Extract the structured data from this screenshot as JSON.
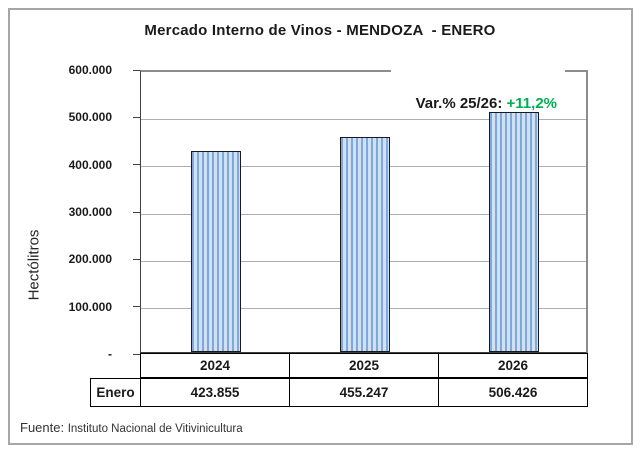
{
  "title": "Mercado Interno de Vinos - MENDOZA  - ENERO",
  "annotation": {
    "label": "Var.% 25/26: ",
    "value": "+11,2%",
    "value_color": "#00B050"
  },
  "y_axis": {
    "label": "Hectólitros",
    "ticks": [
      "600.000",
      "500.000",
      "400.000",
      "300.000",
      "200.000",
      "100.000",
      "-"
    ]
  },
  "chart_data": {
    "type": "bar",
    "categories": [
      "2024",
      "2025",
      "2026"
    ],
    "values": [
      423855,
      455247,
      506426
    ],
    "value_labels": [
      "423.855",
      "455.247",
      "506.426"
    ],
    "title": "Mercado Interno de Vinos - MENDOZA  - ENERO",
    "xlabel": "",
    "ylabel": "Hectólitros",
    "ylim": [
      0,
      600000
    ],
    "ytick_step": 100000,
    "grid": true,
    "legend": false,
    "annotation_text": "Var.% 25/26: +11,2%",
    "bar_style": {
      "stripe_light": "#D0E1F4",
      "stripe_dark": "#7FA8DC",
      "border": "#1A1A1A"
    }
  },
  "table": {
    "row_label": "Enero",
    "columns": [
      "2024",
      "2025",
      "2026"
    ],
    "values": [
      "423.855",
      "455.247",
      "506.426"
    ]
  },
  "footer": {
    "prefix": "Fuente: ",
    "source": "Instituto Nacional de Vitivinicultura"
  }
}
